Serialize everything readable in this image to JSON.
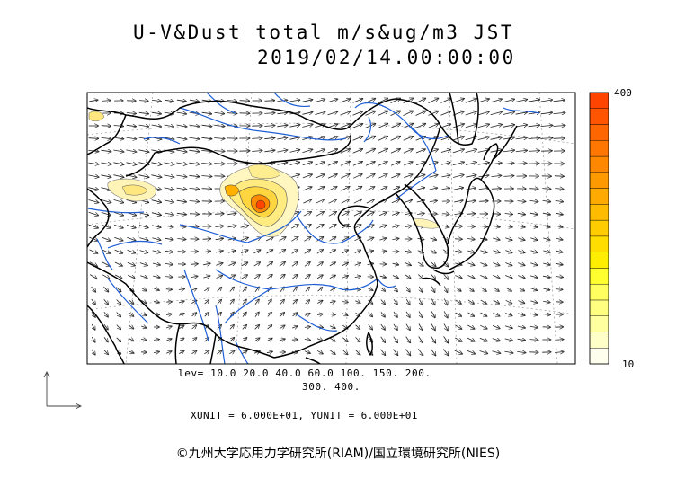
{
  "header": {
    "title": "U-V&Dust total m/s&ug/m3 JST",
    "timestamp": "2019/02/14.00:00:00"
  },
  "colorbar": {
    "max_label": "400",
    "min_label": "10",
    "colors": [
      "#ffffee",
      "#ffffc8",
      "#ffffa0",
      "#ffff80",
      "#ffff60",
      "#ffff30",
      "#ffee00",
      "#ffdd00",
      "#ffcc00",
      "#ffbb00",
      "#ffaa00",
      "#ff9900",
      "#ff8800",
      "#ff7700",
      "#ff6600",
      "#ff5500",
      "#ff4400"
    ]
  },
  "legend": {
    "levels_line1": "lev= 10.0 20.0 40.0 60.0 100. 150. 200.",
    "levels_line2": "300. 400.",
    "unit_line": "XUNIT = 6.000E+01, YUNIT = 6.000E+01"
  },
  "credit": {
    "text": "©九州大学応用力学研究所(RIAM)/国立環境研究所(NIES)"
  },
  "colors": {
    "coast": "#000000",
    "river": "#1f5fd6",
    "contour": "#555555"
  }
}
